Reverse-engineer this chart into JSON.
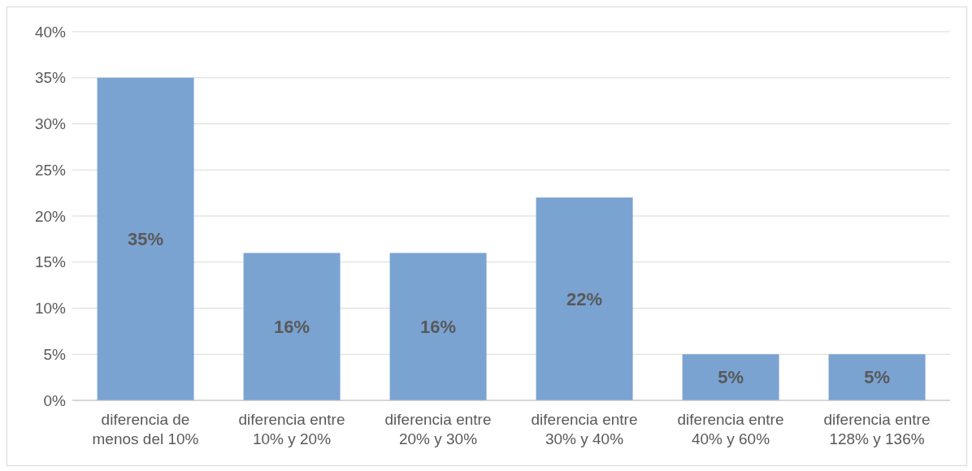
{
  "chart_data": {
    "type": "bar",
    "categories": [
      "diferencia de menos del 10%",
      "diferencia entre 10% y 20%",
      "diferencia entre 20% y 30%",
      "diferencia entre 30% y 40%",
      "diferencia entre 40% y 60%",
      "diferencia entre 128% y 136%"
    ],
    "values": [
      35,
      16,
      16,
      22,
      5,
      5
    ],
    "color": "#7aa3d2",
    "ylim": [
      0,
      40
    ],
    "yticks": [
      {
        "value": 0,
        "label": "0%"
      },
      {
        "value": 5,
        "label": "5%"
      },
      {
        "value": 10,
        "label": "10%"
      },
      {
        "value": 15,
        "label": "15%"
      },
      {
        "value": 20,
        "label": "20%"
      },
      {
        "value": 25,
        "label": "25%"
      },
      {
        "value": 30,
        "label": "30%"
      },
      {
        "value": 35,
        "label": "35%"
      },
      {
        "value": 40,
        "label": "40%"
      }
    ],
    "value_labels": [
      "35%",
      "16%",
      "16%",
      "22%",
      "5%",
      "5%"
    ],
    "grid": "y"
  }
}
